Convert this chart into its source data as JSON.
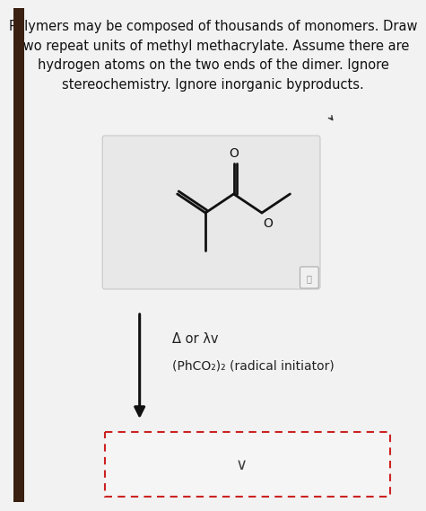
{
  "title_text": "Polymers may be composed of thousands of monomers. Draw\ntwo repeat units of methyl methacrylate. Assume there are\nhydrogen atoms on the two ends of the dimer. Ignore\nstereochemistry. Ignore inorganic byproducts.",
  "title_fontsize": 10.5,
  "background_color": "#f2f2f2",
  "mol_box_facecolor": "#e8e8e8",
  "mol_box_edgecolor": "#c8c8c8",
  "molecule_color": "#111111",
  "arrow_color": "#111111",
  "condition_text1": "Δ or λv",
  "condition_text2": "(PhCO₂)₂ (radical initiator)",
  "dashed_box_color": "#cc2222",
  "chevron_color": "#444444",
  "left_bar_color": "#3a2010",
  "cursor_color": "#333333"
}
